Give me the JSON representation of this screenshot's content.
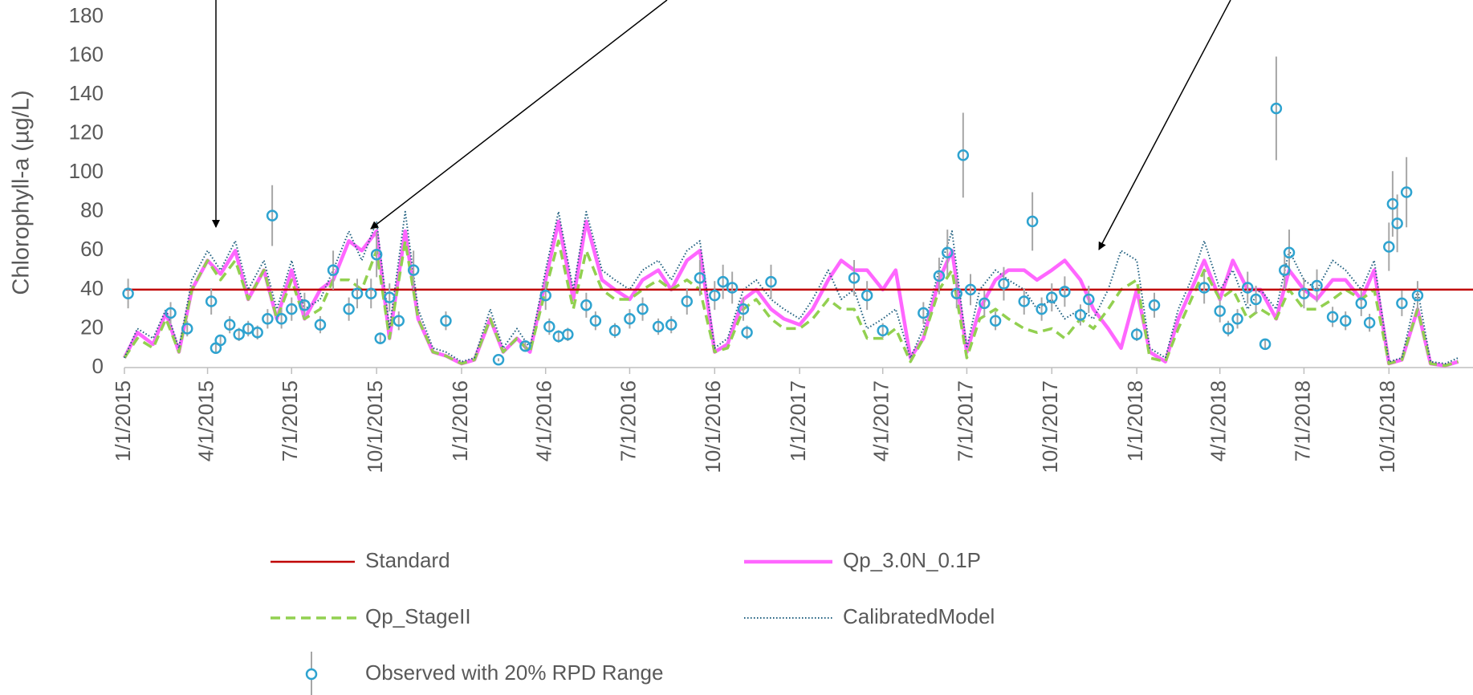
{
  "chart_data": {
    "type": "line",
    "ylabel": "Chlorophyll-a (µg/L)",
    "ylim": [
      0,
      180
    ],
    "yticks": [
      0,
      20,
      40,
      60,
      80,
      100,
      120,
      140,
      160,
      180
    ],
    "xlim": [
      "1/1/2015",
      "12/31/2018"
    ],
    "xticks": [
      "1/1/2015",
      "4/1/2015",
      "7/1/2015",
      "10/1/2015",
      "1/1/2016",
      "4/1/2016",
      "7/1/2016",
      "10/1/2016",
      "1/1/2017",
      "4/1/2017",
      "7/1/2017",
      "10/1/2017",
      "1/1/2018",
      "4/1/2018",
      "7/1/2018",
      "10/1/2018"
    ],
    "reference": {
      "name": "Standard",
      "value": 40,
      "color": "#c00000"
    },
    "x": [
      "1/1/2015",
      "1/15/2015",
      "2/1/2015",
      "2/15/2015",
      "3/1/2015",
      "3/15/2015",
      "4/1/2015",
      "4/15/2015",
      "5/1/2015",
      "5/15/2015",
      "6/1/2015",
      "6/15/2015",
      "7/1/2015",
      "7/15/2015",
      "8/1/2015",
      "8/15/2015",
      "9/1/2015",
      "9/15/2015",
      "10/1/2015",
      "10/15/2015",
      "11/1/2015",
      "11/15/2015",
      "12/1/2015",
      "12/15/2015",
      "1/1/2016",
      "1/15/2016",
      "2/1/2016",
      "2/15/2016",
      "3/1/2016",
      "3/15/2016",
      "4/1/2016",
      "4/15/2016",
      "5/1/2016",
      "5/15/2016",
      "6/1/2016",
      "6/15/2016",
      "7/1/2016",
      "7/15/2016",
      "8/1/2016",
      "8/15/2016",
      "9/1/2016",
      "9/15/2016",
      "10/1/2016",
      "10/15/2016",
      "11/1/2016",
      "11/15/2016",
      "12/1/2016",
      "12/15/2016",
      "1/1/2017",
      "1/15/2017",
      "2/1/2017",
      "2/15/2017",
      "3/1/2017",
      "3/15/2017",
      "4/1/2017",
      "4/15/2017",
      "5/1/2017",
      "5/15/2017",
      "6/1/2017",
      "6/15/2017",
      "7/1/2017",
      "7/15/2017",
      "8/1/2017",
      "8/15/2017",
      "9/1/2017",
      "9/15/2017",
      "10/1/2017",
      "10/15/2017",
      "11/1/2017",
      "11/15/2017",
      "12/1/2017",
      "12/15/2017",
      "1/1/2018",
      "1/15/2018",
      "2/1/2018",
      "2/15/2018",
      "3/1/2018",
      "3/15/2018",
      "4/1/2018",
      "4/15/2018",
      "5/1/2018",
      "5/15/2018",
      "6/1/2018",
      "6/15/2018",
      "7/1/2018",
      "7/15/2018",
      "8/1/2018",
      "8/15/2018",
      "9/1/2018",
      "9/15/2018",
      "10/1/2018",
      "10/15/2018",
      "11/1/2018",
      "11/15/2018",
      "12/1/2018",
      "12/15/2018"
    ],
    "series": [
      {
        "name": "Qp_3.0N_0.1P",
        "color": "#ff66ff",
        "style": "solid",
        "values": [
          5,
          18,
          12,
          28,
          8,
          40,
          55,
          48,
          60,
          35,
          50,
          25,
          50,
          25,
          40,
          45,
          65,
          60,
          70,
          15,
          70,
          25,
          8,
          6,
          2,
          4,
          25,
          8,
          15,
          8,
          45,
          75,
          35,
          75,
          45,
          40,
          35,
          45,
          50,
          40,
          55,
          60,
          8,
          12,
          35,
          40,
          30,
          25,
          22,
          30,
          45,
          55,
          50,
          50,
          40,
          50,
          5,
          15,
          45,
          60,
          8,
          30,
          45,
          50,
          50,
          45,
          50,
          55,
          45,
          30,
          20,
          10,
          40,
          8,
          3,
          25,
          40,
          55,
          35,
          55,
          40,
          40,
          25,
          50,
          40,
          35,
          45,
          45,
          35,
          50,
          2,
          4,
          30,
          2,
          1,
          3
        ]
      },
      {
        "name": "Qp_StageII",
        "color": "#92d050",
        "style": "dashed",
        "values": [
          5,
          15,
          10,
          25,
          8,
          40,
          55,
          45,
          55,
          35,
          50,
          25,
          45,
          25,
          30,
          45,
          45,
          40,
          60,
          15,
          65,
          25,
          8,
          6,
          2,
          4,
          25,
          8,
          15,
          8,
          40,
          65,
          30,
          60,
          40,
          35,
          35,
          40,
          45,
          40,
          45,
          40,
          8,
          10,
          30,
          35,
          25,
          20,
          20,
          25,
          35,
          30,
          30,
          15,
          15,
          20,
          3,
          15,
          40,
          50,
          5,
          25,
          30,
          25,
          20,
          18,
          20,
          15,
          25,
          20,
          30,
          40,
          45,
          5,
          3,
          20,
          35,
          50,
          35,
          40,
          25,
          30,
          25,
          40,
          30,
          30,
          35,
          40,
          35,
          40,
          2,
          4,
          30,
          2,
          1,
          3
        ]
      },
      {
        "name": "CalibratedModel",
        "color": "#1f5f7f",
        "style": "dotted",
        "values": [
          5,
          20,
          15,
          30,
          10,
          45,
          60,
          50,
          65,
          40,
          55,
          30,
          55,
          30,
          35,
          50,
          70,
          55,
          75,
          20,
          80,
          30,
          10,
          8,
          3,
          5,
          30,
          10,
          20,
          10,
          50,
          80,
          40,
          80,
          50,
          45,
          40,
          50,
          55,
          45,
          60,
          65,
          10,
          15,
          40,
          45,
          35,
          30,
          25,
          35,
          50,
          35,
          40,
          20,
          25,
          30,
          5,
          20,
          50,
          70,
          10,
          40,
          50,
          45,
          40,
          30,
          35,
          25,
          30,
          25,
          40,
          60,
          55,
          10,
          5,
          30,
          45,
          65,
          40,
          50,
          30,
          40,
          30,
          60,
          45,
          40,
          55,
          50,
          40,
          55,
          3,
          5,
          40,
          3,
          2,
          5
        ]
      }
    ],
    "observed": {
      "name": "Observed with 20% RPD Range",
      "color": "#2ea3d0",
      "error_color": "#a6a6a6",
      "x": [
        "1/5/2015",
        "2/20/2015",
        "3/10/2015",
        "4/5/2015",
        "4/10/2015",
        "4/15/2015",
        "4/25/2015",
        "5/5/2015",
        "5/15/2015",
        "5/25/2015",
        "6/5/2015",
        "6/10/2015",
        "6/20/2015",
        "7/1/2015",
        "7/15/2015",
        "8/1/2015",
        "8/15/2015",
        "9/1/2015",
        "9/10/2015",
        "9/25/2015",
        "10/1/2015",
        "10/5/2015",
        "10/15/2015",
        "10/25/2015",
        "11/10/2015",
        "12/15/2015",
        "2/10/2016",
        "3/10/2016",
        "4/1/2016",
        "4/5/2016",
        "4/15/2016",
        "4/25/2016",
        "5/15/2016",
        "5/25/2016",
        "6/15/2016",
        "7/1/2016",
        "7/15/2016",
        "8/1/2016",
        "8/15/2016",
        "9/1/2016",
        "9/15/2016",
        "10/1/2016",
        "10/10/2016",
        "10/20/2016",
        "11/1/2016",
        "11/5/2016",
        "12/1/2016",
        "3/1/2017",
        "3/15/2017",
        "4/1/2017",
        "5/15/2017",
        "6/1/2017",
        "6/10/2017",
        "6/20/2017",
        "6/27/2017",
        "7/5/2017",
        "7/20/2017",
        "8/1/2017",
        "8/10/2017",
        "9/1/2017",
        "9/10/2017",
        "9/20/2017",
        "10/1/2017",
        "10/15/2017",
        "11/1/2017",
        "11/10/2017",
        "1/1/2018",
        "1/20/2018",
        "3/15/2018",
        "4/1/2018",
        "4/10/2018",
        "4/20/2018",
        "5/1/2018",
        "5/10/2018",
        "5/20/2018",
        "6/1/2018",
        "6/10/2018",
        "6/15/2018",
        "7/1/2018",
        "7/15/2018",
        "8/1/2018",
        "8/15/2018",
        "9/1/2018",
        "9/10/2018",
        "10/1/2018",
        "10/5/2018",
        "10/10/2018",
        "10/15/2018",
        "10/20/2018",
        "11/1/2018"
      ],
      "values": [
        38,
        28,
        20,
        34,
        10,
        14,
        22,
        17,
        20,
        18,
        25,
        78,
        25,
        30,
        32,
        22,
        50,
        30,
        38,
        38,
        58,
        15,
        36,
        24,
        50,
        24,
        4,
        11,
        37,
        21,
        16,
        17,
        32,
        24,
        19,
        25,
        30,
        21,
        22,
        34,
        46,
        37,
        44,
        41,
        30,
        18,
        44,
        46,
        37,
        19,
        28,
        47,
        59,
        38,
        109,
        40,
        33,
        24,
        43,
        34,
        75,
        30,
        36,
        39,
        27,
        35,
        17,
        32,
        41,
        29,
        20,
        25,
        41,
        35,
        12,
        133,
        50,
        59,
        38,
        42,
        26,
        24,
        33,
        23,
        62,
        84,
        74,
        33,
        90,
        37
      ],
      "errors": [
        7.6,
        5.6,
        4,
        6.8,
        2,
        2.8,
        4.4,
        3.4,
        4,
        3.6,
        5,
        15.6,
        5,
        6,
        6.4,
        4.4,
        10,
        6,
        7.6,
        7.6,
        11.6,
        3,
        7.2,
        4.8,
        10,
        4.8,
        0.8,
        2.2,
        7.4,
        4.2,
        3.2,
        3.4,
        6.4,
        4.8,
        3.8,
        5,
        6,
        4.2,
        4.4,
        6.8,
        9.2,
        7.4,
        8.8,
        8.2,
        6,
        3.6,
        8.8,
        9.2,
        7.4,
        3.8,
        5.6,
        9.4,
        11.8,
        7.6,
        21.8,
        8,
        6.6,
        4.8,
        8.6,
        6.8,
        15,
        6,
        7.2,
        7.8,
        5.4,
        7,
        3.4,
        6.4,
        8.2,
        5.8,
        4,
        5,
        8.2,
        7,
        2.4,
        26.6,
        10,
        11.8,
        7.6,
        8.4,
        5.2,
        4.8,
        6.6,
        4.6,
        12.4,
        16.8,
        14.8,
        6.6,
        18,
        7.4
      ]
    }
  }
}
